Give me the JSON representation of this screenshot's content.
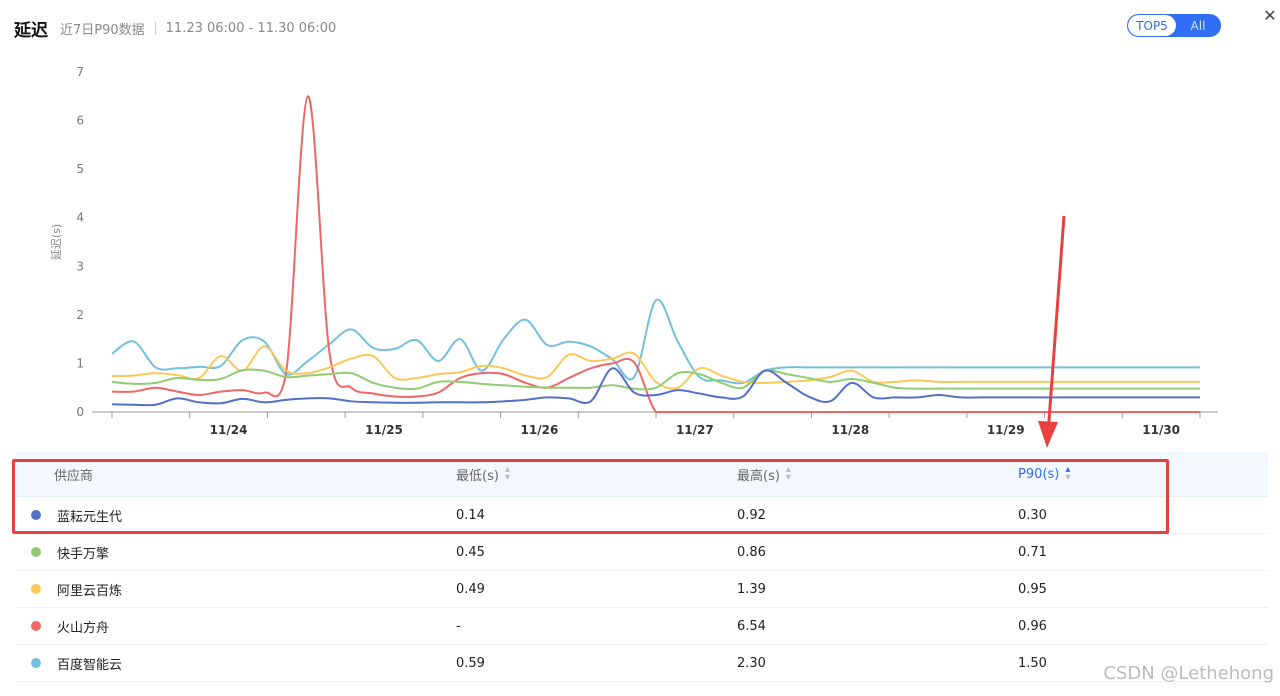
{
  "header": {
    "title": "延迟",
    "subtitle": "近7日P90数据",
    "range": "11.23 06:00 - 11.30 06:00"
  },
  "toggle": {
    "active": "TOP5",
    "inactive": "All"
  },
  "close_icon": "close-icon",
  "chart_data": {
    "type": "line",
    "ylabel": "延迟(s)",
    "ylim": [
      0,
      7
    ],
    "yticks": [
      "0",
      "1",
      "2",
      "3",
      "4",
      "5",
      "6",
      "7"
    ],
    "xlabels": [
      "11/24",
      "11/25",
      "11/26",
      "11/27",
      "11/28",
      "11/29",
      "11/30"
    ],
    "x": [
      0,
      0.125,
      0.25,
      0.375,
      0.5,
      0.625,
      0.75,
      0.875,
      1,
      1.125,
      1.25,
      1.375,
      1.5,
      1.625,
      1.75,
      1.875,
      2,
      2.125,
      2.25,
      2.375,
      2.5,
      2.625,
      2.75,
      2.875,
      3,
      3.125,
      3.25,
      3.375,
      3.5,
      3.625,
      3.75,
      3.875,
      4,
      4.125,
      4.25,
      4.375,
      4.5,
      4.625,
      4.75,
      4.875,
      5,
      5.125,
      5.25,
      5.375,
      5.5,
      5.625,
      5.75,
      5.875,
      6,
      6.125,
      6.25
    ],
    "series": [
      {
        "name": "蓝耘元生代",
        "color": "#5470c6",
        "values": [
          0.16,
          0.15,
          0.15,
          0.28,
          0.2,
          0.18,
          0.27,
          0.2,
          0.25,
          0.28,
          0.28,
          0.22,
          0.2,
          0.19,
          0.19,
          0.2,
          0.2,
          0.2,
          0.22,
          0.25,
          0.3,
          0.28,
          0.22,
          0.9,
          0.4,
          0.35,
          0.45,
          0.38,
          0.3,
          0.32,
          0.85,
          0.6,
          0.32,
          0.22,
          0.6,
          0.3,
          0.3,
          0.3,
          0.35,
          0.3,
          0.3,
          0.3,
          0.3,
          0.3,
          0.3,
          0.3,
          0.3,
          0.3,
          0.3,
          0.3,
          0.3
        ]
      },
      {
        "name": "快手万擎",
        "color": "#91cc75",
        "values": [
          0.62,
          0.58,
          0.6,
          0.7,
          0.66,
          0.68,
          0.86,
          0.85,
          0.72,
          0.75,
          0.78,
          0.8,
          0.6,
          0.5,
          0.48,
          0.62,
          0.62,
          0.58,
          0.55,
          0.52,
          0.5,
          0.5,
          0.5,
          0.55,
          0.48,
          0.5,
          0.8,
          0.78,
          0.6,
          0.5,
          0.85,
          0.78,
          0.7,
          0.62,
          0.68,
          0.6,
          0.5,
          0.48,
          0.48,
          0.48,
          0.48,
          0.48,
          0.48,
          0.48,
          0.48,
          0.48,
          0.48,
          0.48,
          0.48,
          0.48,
          0.48
        ]
      },
      {
        "name": "阿里云百炼",
        "color": "#fac858",
        "values": [
          0.74,
          0.75,
          0.8,
          0.76,
          0.7,
          1.15,
          0.85,
          1.35,
          0.85,
          0.8,
          0.92,
          1.1,
          1.15,
          0.7,
          0.7,
          0.78,
          0.82,
          0.95,
          0.9,
          0.75,
          0.72,
          1.18,
          1.05,
          1.1,
          1.2,
          0.62,
          0.5,
          0.9,
          0.75,
          0.62,
          0.6,
          0.62,
          0.65,
          0.72,
          0.85,
          0.62,
          0.62,
          0.65,
          0.62,
          0.62,
          0.62,
          0.62,
          0.62,
          0.62,
          0.62,
          0.62,
          0.62,
          0.62,
          0.62,
          0.62,
          0.62
        ]
      },
      {
        "name": "火山方舟",
        "color": "#ee6666",
        "values": [
          0.42,
          0.42,
          0.5,
          0.42,
          0.35,
          0.42,
          0.45,
          0.4,
          0.8,
          6.5,
          1.2,
          0.5,
          0.38,
          0.32,
          0.32,
          0.4,
          0.7,
          0.8,
          0.78,
          0.6,
          0.5,
          0.7,
          0.9,
          1.0,
          1.02,
          0,
          0,
          0,
          0,
          0,
          0,
          0,
          0,
          0,
          0,
          0,
          0,
          0,
          0,
          0,
          0,
          0,
          0,
          0,
          0,
          0,
          0,
          0,
          0,
          0,
          0
        ]
      },
      {
        "name": "百度智能云",
        "color": "#73c0de",
        "values": [
          1.2,
          1.45,
          0.92,
          0.9,
          0.93,
          0.95,
          1.48,
          1.45,
          0.78,
          1.05,
          1.4,
          1.7,
          1.32,
          1.3,
          1.48,
          1.05,
          1.5,
          0.85,
          1.5,
          1.9,
          1.38,
          1.45,
          1.35,
          1.08,
          0.72,
          2.3,
          1.45,
          0.72,
          0.65,
          0.6,
          0.85,
          0.92,
          0.92,
          0.92,
          0.92,
          0.92,
          0.92,
          0.92,
          0.92,
          0.92,
          0.92,
          0.92,
          0.92,
          0.92,
          0.92,
          0.92,
          0.92,
          0.92,
          0.92,
          0.92,
          0.92
        ]
      }
    ]
  },
  "table": {
    "columns": [
      "供应商",
      "最低(s)",
      "最高(s)",
      "P90(s)"
    ],
    "rows": [
      {
        "name": "蓝耘元生代",
        "color": "#5470c6",
        "min": "0.14",
        "max": "0.92",
        "p90": "0.30"
      },
      {
        "name": "快手万擎",
        "color": "#91cc75",
        "min": "0.45",
        "max": "0.86",
        "p90": "0.71"
      },
      {
        "name": "阿里云百炼",
        "color": "#fac858",
        "min": "0.49",
        "max": "1.39",
        "p90": "0.95"
      },
      {
        "name": "火山方舟",
        "color": "#ee6666",
        "min": "-",
        "max": "6.54",
        "p90": "0.96"
      },
      {
        "name": "百度智能云",
        "color": "#73c0de",
        "min": "0.59",
        "max": "2.30",
        "p90": "1.50"
      }
    ]
  },
  "watermark": "CSDN @Lethehong"
}
